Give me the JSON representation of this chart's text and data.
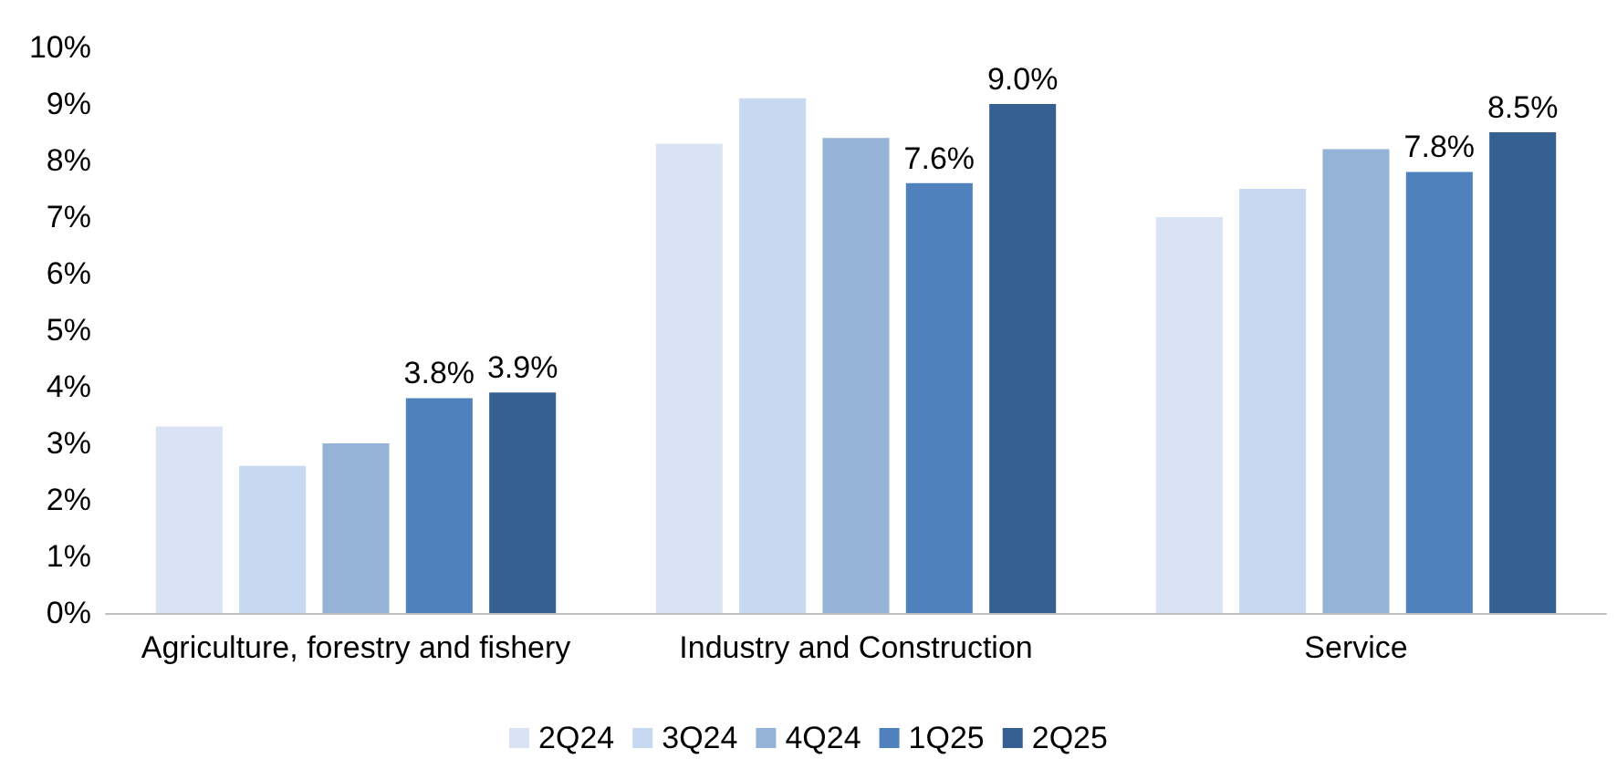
{
  "chart_data": {
    "type": "bar",
    "categories": [
      "Agriculture, forestry and fishery",
      "Industry and Construction",
      "Service"
    ],
    "series": [
      {
        "name": "2Q24",
        "color": "#dae3f3",
        "values": [
          3.3,
          8.3,
          7.0
        ]
      },
      {
        "name": "3Q24",
        "color": "#c6d9f1",
        "values": [
          2.6,
          9.1,
          7.5
        ]
      },
      {
        "name": "4Q24",
        "color": "#95b3d7",
        "values": [
          3.0,
          8.4,
          8.2
        ]
      },
      {
        "name": "1Q25",
        "color": "#4f81bd",
        "values": [
          3.8,
          7.6,
          7.8
        ],
        "value_labels": [
          "3.8%",
          "7.6%",
          "7.8%"
        ]
      },
      {
        "name": "2Q25",
        "color": "#366092",
        "values": [
          3.9,
          9.0,
          8.5
        ],
        "value_labels": [
          "3.9%",
          "9.0%",
          "8.5%"
        ]
      }
    ],
    "ylim": [
      0,
      10
    ],
    "yticks": [
      {
        "value": 0,
        "label": "0%"
      },
      {
        "value": 1,
        "label": "1%"
      },
      {
        "value": 2,
        "label": "2%"
      },
      {
        "value": 3,
        "label": "3%"
      },
      {
        "value": 4,
        "label": "4%"
      },
      {
        "value": 5,
        "label": "5%"
      },
      {
        "value": 6,
        "label": "6%"
      },
      {
        "value": 7,
        "label": "7%"
      },
      {
        "value": 8,
        "label": "8%"
      },
      {
        "value": 9,
        "label": "9%"
      },
      {
        "value": 10,
        "label": "10%"
      }
    ],
    "grid": false,
    "legend": "bottom"
  }
}
